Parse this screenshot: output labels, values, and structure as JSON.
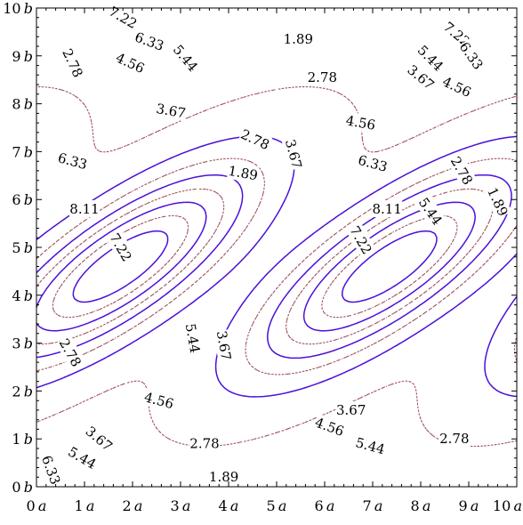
{
  "chart_data": {
    "type": "contour",
    "title": "",
    "xlabel": "",
    "ylabel": "",
    "x_unit": "a",
    "y_unit": "b",
    "xlim": [
      0,
      10
    ],
    "ylim": [
      0,
      10
    ],
    "x_ticks": [
      "0",
      "1",
      "2",
      "3",
      "4",
      "5",
      "6",
      "7",
      "8",
      "9",
      "10"
    ],
    "y_ticks": [
      "0",
      "1",
      "2",
      "3",
      "4",
      "5",
      "6",
      "7",
      "8",
      "9",
      "10"
    ],
    "levels": [
      {
        "value": 1.89,
        "label": "1.89",
        "style": "dotted",
        "color": "#a0505a"
      },
      {
        "value": 2.78,
        "label": "2.78",
        "style": "solid",
        "color": "#4b10d8"
      },
      {
        "value": 3.67,
        "label": "3.67",
        "style": "dotted",
        "color": "#a0505a"
      },
      {
        "value": 4.56,
        "label": "4.56",
        "style": "solid",
        "color": "#4b10d8"
      },
      {
        "value": 5.44,
        "label": "5.44",
        "style": "dotted",
        "color": "#a0505a"
      },
      {
        "value": 6.33,
        "label": "6.33",
        "style": "solid",
        "color": "#4b10d8"
      },
      {
        "value": 7.22,
        "label": "7.22",
        "style": "dotted",
        "color": "#a0505a"
      },
      {
        "value": 8.11,
        "label": "8.11",
        "style": "solid",
        "color": "#4b10d8"
      }
    ],
    "contour_labels": [
      {
        "text": "8.11",
        "x": 1.0,
        "y": 5.8,
        "rot": 0
      },
      {
        "text": "7.22",
        "x": 1.75,
        "y": 5.0,
        "rot": 60
      },
      {
        "text": "6.33",
        "x": 0.75,
        "y": 6.8,
        "rot": 15
      },
      {
        "text": "5.44",
        "x": 3.25,
        "y": 3.1,
        "rot": 80
      },
      {
        "text": "4.56",
        "x": 2.55,
        "y": 1.8,
        "rot": 15
      },
      {
        "text": "3.67",
        "x": 3.9,
        "y": 2.95,
        "rot": 80
      },
      {
        "text": "2.78",
        "x": 0.7,
        "y": 2.8,
        "rot": 60
      },
      {
        "text": "3.67",
        "x": 1.3,
        "y": 1.0,
        "rot": 40
      },
      {
        "text": "5.44",
        "x": 0.95,
        "y": 0.6,
        "rot": 30
      },
      {
        "text": "6.33",
        "x": 0.3,
        "y": 0.35,
        "rot": 70
      },
      {
        "text": "2.78",
        "x": 3.5,
        "y": 0.9,
        "rot": 0
      },
      {
        "text": "1.89",
        "x": 3.9,
        "y": 0.2,
        "rot": 0
      },
      {
        "text": "7.22",
        "x": 1.8,
        "y": 9.8,
        "rot": 30
      },
      {
        "text": "6.33",
        "x": 2.35,
        "y": 9.3,
        "rot": 20
      },
      {
        "text": "5.44",
        "x": 3.1,
        "y": 8.95,
        "rot": 50
      },
      {
        "text": "4.56",
        "x": 1.95,
        "y": 8.85,
        "rot": 25
      },
      {
        "text": "2.78",
        "x": 0.75,
        "y": 8.85,
        "rot": 65
      },
      {
        "text": "3.67",
        "x": 2.8,
        "y": 7.85,
        "rot": 10
      },
      {
        "text": "1.89",
        "x": 5.45,
        "y": 9.35,
        "rot": 0
      },
      {
        "text": "2.78",
        "x": 5.95,
        "y": 8.55,
        "rot": 0
      },
      {
        "text": "2.78",
        "x": 4.55,
        "y": 7.25,
        "rot": 25
      },
      {
        "text": "1.89",
        "x": 4.3,
        "y": 6.55,
        "rot": 10
      },
      {
        "text": "3.67",
        "x": 5.35,
        "y": 6.95,
        "rot": 75
      },
      {
        "text": "8.11",
        "x": 7.3,
        "y": 5.8,
        "rot": 0
      },
      {
        "text": "7.22",
        "x": 6.75,
        "y": 5.15,
        "rot": 60
      },
      {
        "text": "6.33",
        "x": 7.0,
        "y": 6.75,
        "rot": 15
      },
      {
        "text": "5.44",
        "x": 8.2,
        "y": 5.75,
        "rot": 55
      },
      {
        "text": "4.56",
        "x": 6.75,
        "y": 7.6,
        "rot": 10
      },
      {
        "text": "2.78",
        "x": 8.85,
        "y": 6.6,
        "rot": 60
      },
      {
        "text": "1.89",
        "x": 9.6,
        "y": 5.95,
        "rot": 65
      },
      {
        "text": "7.22",
        "x": 8.75,
        "y": 9.45,
        "rot": 40
      },
      {
        "text": "6.33",
        "x": 9.05,
        "y": 9.0,
        "rot": 55
      },
      {
        "text": "5.44",
        "x": 8.2,
        "y": 8.95,
        "rot": 45
      },
      {
        "text": "4.56",
        "x": 8.75,
        "y": 8.35,
        "rot": 25
      },
      {
        "text": "3.67",
        "x": 8.0,
        "y": 8.55,
        "rot": 40
      },
      {
        "text": "3.67",
        "x": 6.55,
        "y": 1.6,
        "rot": 0
      },
      {
        "text": "4.56",
        "x": 6.1,
        "y": 1.25,
        "rot": 20
      },
      {
        "text": "5.44",
        "x": 6.95,
        "y": 0.85,
        "rot": 15
      },
      {
        "text": "2.78",
        "x": 8.7,
        "y": 1.0,
        "rot": 0
      }
    ]
  }
}
